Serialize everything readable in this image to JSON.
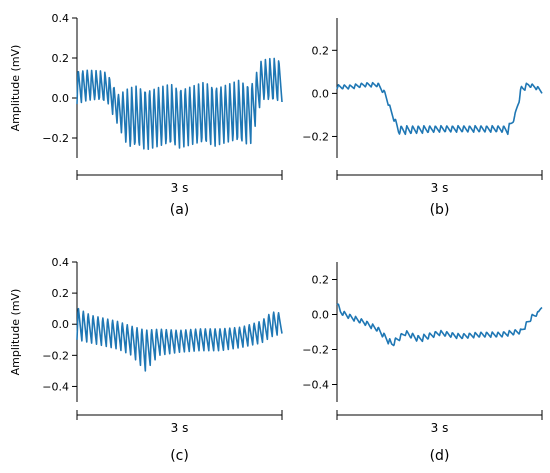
{
  "figure": {
    "colors": {
      "trace": "#1f77b4",
      "axis": "#000000",
      "background": "#ffffff"
    }
  },
  "chart_data": [
    {
      "id": "a",
      "type": "line",
      "panel_label": "(a)",
      "ylabel": "Amplitude (mV)",
      "xlabel": "3 s",
      "ylim": [
        -0.3,
        0.4
      ],
      "yticks": [
        0.4,
        0.2,
        0.0,
        -0.2
      ],
      "tick_labels": [
        "0.4",
        "0.2",
        "0.0",
        "−0.2"
      ],
      "duration_s": 3,
      "grid": false,
      "series": [
        {
          "x": [
            0.0,
            0.15,
            0.3,
            0.45,
            0.6,
            0.75,
            0.9,
            1.2,
            1.5,
            1.8,
            2.1,
            2.4,
            2.55,
            2.7,
            2.85,
            3.0
          ],
          "envelope_upper": [
            0.15,
            0.15,
            0.14,
            0.13,
            0.03,
            0.06,
            0.06,
            0.07,
            0.07,
            0.08,
            0.08,
            0.09,
            0.09,
            0.2,
            0.2,
            0.2
          ],
          "envelope_lower": [
            -0.03,
            -0.02,
            -0.02,
            -0.03,
            -0.14,
            -0.27,
            -0.26,
            -0.26,
            -0.25,
            -0.25,
            -0.24,
            -0.24,
            -0.23,
            -0.02,
            -0.03,
            -0.02
          ]
        }
      ]
    },
    {
      "id": "b",
      "type": "line",
      "panel_label": "(b)",
      "ylabel": "",
      "xlabel": "3 s",
      "ylim": [
        -0.3,
        0.35
      ],
      "yticks": [
        0.2,
        0.0,
        -0.2
      ],
      "tick_labels": [
        "0.2",
        "0.0",
        "−0.2"
      ],
      "duration_s": 3,
      "grid": false,
      "series": [
        {
          "x": [
            0.0,
            0.2,
            0.4,
            0.6,
            0.7,
            0.8,
            0.9,
            1.0,
            1.5,
            2.0,
            2.4,
            2.5,
            2.6,
            2.7,
            2.8,
            2.9,
            3.0
          ],
          "envelope_upper": [
            0.04,
            0.04,
            0.05,
            0.05,
            0.01,
            -0.08,
            -0.15,
            -0.15,
            -0.15,
            -0.15,
            -0.15,
            -0.15,
            -0.1,
            0.04,
            0.05,
            0.04,
            0.02
          ],
          "envelope_lower": [
            0.02,
            0.02,
            0.03,
            0.03,
            -0.01,
            -0.1,
            -0.19,
            -0.19,
            -0.18,
            -0.18,
            -0.18,
            -0.19,
            -0.12,
            0.0,
            0.03,
            0.02,
            0.0
          ]
        }
      ]
    },
    {
      "id": "c",
      "type": "line",
      "panel_label": "(c)",
      "ylabel": "Amplitude (mV)",
      "xlabel": "3 s",
      "ylim": [
        -0.5,
        0.4
      ],
      "yticks": [
        0.4,
        0.2,
        0.0,
        -0.2,
        -0.4
      ],
      "tick_labels": [
        "0.4",
        "0.2",
        "0.0",
        "−0.2",
        "−0.4"
      ],
      "duration_s": 3,
      "grid": false,
      "series": [
        {
          "x": [
            0.0,
            0.2,
            0.4,
            0.6,
            0.8,
            1.0,
            1.2,
            1.5,
            1.8,
            2.1,
            2.4,
            2.7,
            2.85,
            3.0
          ],
          "envelope_upper": [
            0.12,
            0.07,
            0.05,
            0.03,
            0.0,
            -0.02,
            -0.02,
            -0.03,
            -0.02,
            -0.02,
            -0.01,
            0.03,
            0.09,
            0.08
          ],
          "envelope_lower": [
            -0.1,
            -0.12,
            -0.14,
            -0.16,
            -0.2,
            -0.3,
            -0.2,
            -0.18,
            -0.17,
            -0.17,
            -0.15,
            -0.12,
            -0.08,
            -0.06
          ]
        }
      ]
    },
    {
      "id": "d",
      "type": "line",
      "panel_label": "(d)",
      "ylabel": "",
      "xlabel": "3 s",
      "ylim": [
        -0.5,
        0.3
      ],
      "yticks": [
        0.2,
        0.0,
        -0.2,
        -0.4
      ],
      "tick_labels": [
        "0.2",
        "0.0",
        "−0.2",
        "−0.4"
      ],
      "duration_s": 3,
      "grid": false,
      "series": [
        {
          "x": [
            0.0,
            0.05,
            0.2,
            0.4,
            0.6,
            0.8,
            1.0,
            1.2,
            1.5,
            1.8,
            2.1,
            2.4,
            2.7,
            2.85,
            2.95,
            3.0
          ],
          "envelope_upper": [
            0.08,
            0.03,
            0.0,
            -0.03,
            -0.07,
            -0.15,
            -0.09,
            -0.12,
            -0.09,
            -0.11,
            -0.1,
            -0.1,
            -0.08,
            0.0,
            0.02,
            0.07
          ],
          "envelope_lower": [
            0.06,
            0.0,
            -0.03,
            -0.06,
            -0.1,
            -0.19,
            -0.12,
            -0.16,
            -0.12,
            -0.14,
            -0.13,
            -0.13,
            -0.11,
            -0.03,
            0.0,
            0.04
          ]
        }
      ]
    }
  ]
}
